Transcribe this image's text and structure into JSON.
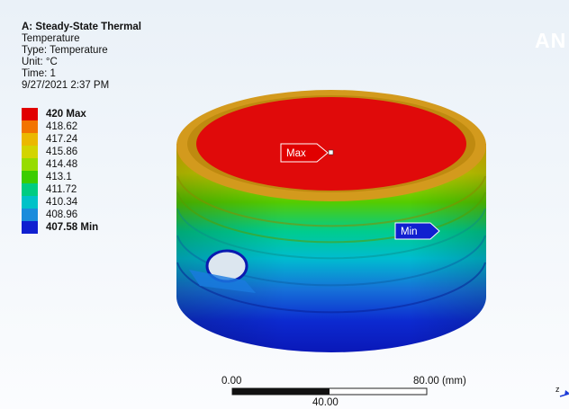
{
  "info": {
    "title": "A: Steady-State Thermal",
    "result": "Temperature",
    "type": "Type: Temperature",
    "unit": "Unit: °C",
    "time": "Time: 1",
    "date": "9/27/2021 2:37 PM"
  },
  "legend": {
    "entries": [
      {
        "label": "420 Max",
        "color": "#e10000",
        "bold": true
      },
      {
        "label": "418.62",
        "color": "#f27400"
      },
      {
        "label": "417.24",
        "color": "#ebb800"
      },
      {
        "label": "415.86",
        "color": "#d3d400"
      },
      {
        "label": "414.48",
        "color": "#96dc00"
      },
      {
        "label": "413.1",
        "color": "#3ccd00"
      },
      {
        "label": "411.72",
        "color": "#00cc82"
      },
      {
        "label": "410.34",
        "color": "#00c2c8"
      },
      {
        "label": "408.96",
        "color": "#1a8cdc"
      },
      {
        "label": "407.58 Min",
        "color": "#1020d0",
        "bold": true
      }
    ]
  },
  "probes": {
    "max_label": "Max",
    "min_label": "Min",
    "max_color": "#e10000",
    "min_color": "#1020d0"
  },
  "scale": {
    "left_label": "0.00",
    "right_label": "80.00 (mm)",
    "mid_label": "40.00"
  },
  "logo": "AN",
  "axis_label": "z"
}
